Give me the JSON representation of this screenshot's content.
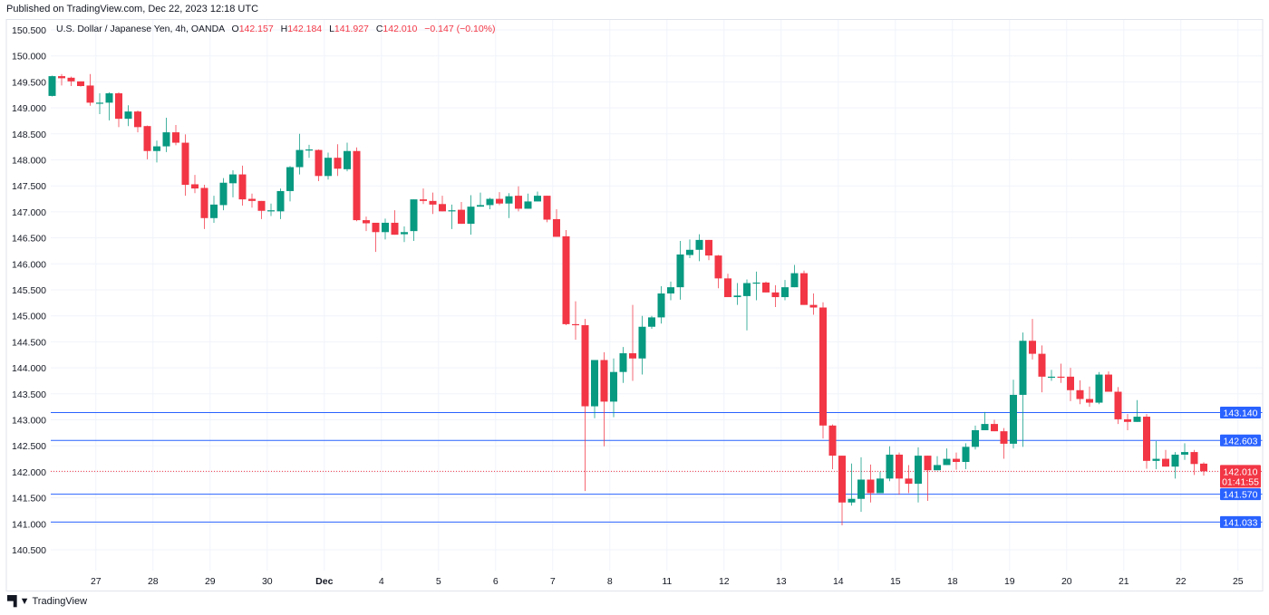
{
  "published": "Published on TradingView.com, Dec 22, 2023 12:18 UTC",
  "legend": {
    "symbol": "U.S. Dollar / Japanese Yen, 4h, OANDA",
    "o_label": "O",
    "o": "142.157",
    "h_label": "H",
    "h": "142.184",
    "l_label": "L",
    "l": "141.927",
    "c_label": "C",
    "c": "142.010",
    "change": "−0.147 (−0.10%)"
  },
  "footer": {
    "brand": "TradingView",
    "logo": "TV"
  },
  "colors": {
    "up": "#089981",
    "down": "#f23645",
    "hline": "#2962ff",
    "grid": "#f0f3fa"
  },
  "chart_data": {
    "type": "candlestick",
    "title": "U.S. Dollar / Japanese Yen, 4h, OANDA",
    "ylim": [
      140.3,
      150.7
    ],
    "y_ticks": [
      "140.500",
      "141.000",
      "141.500",
      "142.000",
      "142.500",
      "143.000",
      "143.500",
      "144.000",
      "144.500",
      "145.000",
      "145.500",
      "146.000",
      "146.500",
      "147.000",
      "147.500",
      "148.000",
      "148.500",
      "149.000",
      "149.500",
      "150.000",
      "150.500"
    ],
    "x_ticks": [
      "27",
      "28",
      "29",
      "30",
      "Dec",
      "4",
      "5",
      "6",
      "7",
      "8",
      "11",
      "12",
      "13",
      "14",
      "15",
      "18",
      "19",
      "20",
      "21",
      "22",
      "25"
    ],
    "x_tick_first_bar": 4.6,
    "bars_per_day": 6,
    "grid": true,
    "horizontal_lines": [
      "143.140",
      "142.603",
      "141.570",
      "141.033"
    ],
    "last_price": "142.010",
    "countdown": "01:41:55",
    "ohlc": [
      [
        149.23,
        149.62,
        149.22,
        149.61
      ],
      [
        149.61,
        149.65,
        149.43,
        149.57
      ],
      [
        149.58,
        149.6,
        149.42,
        149.51
      ],
      [
        149.51,
        149.51,
        149.41,
        149.42
      ],
      [
        149.43,
        149.65,
        149.04,
        149.1
      ],
      [
        149.09,
        149.28,
        148.88,
        149.1
      ],
      [
        149.1,
        149.3,
        148.76,
        149.28
      ],
      [
        149.28,
        149.3,
        148.63,
        148.79
      ],
      [
        148.79,
        149.05,
        148.65,
        148.93
      ],
      [
        148.93,
        148.95,
        148.53,
        148.63
      ],
      [
        148.65,
        148.66,
        148.01,
        148.17
      ],
      [
        148.17,
        148.37,
        147.95,
        148.26
      ],
      [
        148.26,
        148.81,
        148.15,
        148.53
      ],
      [
        148.53,
        148.67,
        148.28,
        148.33
      ],
      [
        148.33,
        148.49,
        147.31,
        147.52
      ],
      [
        147.53,
        147.71,
        147.36,
        147.45
      ],
      [
        147.46,
        147.52,
        146.67,
        146.88
      ],
      [
        146.88,
        147.31,
        146.79,
        147.14
      ],
      [
        147.13,
        147.65,
        147.03,
        147.56
      ],
      [
        147.55,
        147.8,
        147.28,
        147.72
      ],
      [
        147.72,
        147.89,
        147.12,
        147.24
      ],
      [
        147.25,
        147.35,
        147.08,
        147.21
      ],
      [
        147.21,
        147.21,
        146.86,
        147.02
      ],
      [
        147.02,
        147.16,
        146.92,
        147.03
      ],
      [
        147.01,
        147.45,
        146.86,
        147.4
      ],
      [
        147.4,
        147.88,
        147.2,
        147.86
      ],
      [
        147.86,
        148.5,
        147.72,
        148.19
      ],
      [
        148.19,
        148.29,
        148.04,
        148.2
      ],
      [
        148.19,
        148.2,
        147.59,
        147.69
      ],
      [
        147.69,
        148.14,
        147.62,
        148.04
      ],
      [
        148.04,
        148.3,
        147.69,
        147.83
      ],
      [
        147.82,
        148.33,
        147.78,
        148.17
      ],
      [
        148.17,
        148.24,
        146.82,
        146.84
      ],
      [
        146.84,
        146.91,
        146.63,
        146.78
      ],
      [
        146.79,
        146.79,
        146.23,
        146.61
      ],
      [
        146.61,
        146.87,
        146.47,
        146.79
      ],
      [
        146.79,
        147.03,
        146.56,
        146.56
      ],
      [
        146.57,
        146.72,
        146.42,
        146.61
      ],
      [
        146.63,
        147.24,
        146.44,
        147.24
      ],
      [
        147.24,
        147.45,
        147.15,
        147.21
      ],
      [
        147.21,
        147.37,
        146.96,
        147.14
      ],
      [
        147.15,
        147.31,
        147.01,
        147.01
      ],
      [
        147.01,
        147.14,
        146.67,
        147.03
      ],
      [
        147.04,
        147.19,
        146.77,
        146.77
      ],
      [
        146.77,
        147.32,
        146.56,
        147.1
      ],
      [
        147.1,
        147.37,
        147.1,
        147.13
      ],
      [
        147.13,
        147.27,
        147.05,
        147.25
      ],
      [
        147.25,
        147.38,
        147.13,
        147.16
      ],
      [
        147.16,
        147.36,
        146.88,
        147.3
      ],
      [
        147.31,
        147.49,
        147.01,
        147.06
      ],
      [
        147.06,
        147.35,
        147.06,
        147.2
      ],
      [
        147.2,
        147.39,
        147.2,
        147.31
      ],
      [
        147.31,
        147.31,
        146.8,
        146.85
      ],
      [
        146.86,
        147.05,
        146.52,
        146.52
      ],
      [
        146.53,
        146.65,
        144.82,
        144.84
      ],
      [
        144.84,
        145.28,
        144.54,
        144.82
      ],
      [
        144.82,
        144.94,
        141.63,
        143.26
      ],
      [
        143.26,
        144.15,
        143.03,
        144.15
      ],
      [
        144.15,
        144.3,
        142.49,
        143.35
      ],
      [
        143.35,
        144.18,
        143.05,
        143.92
      ],
      [
        143.92,
        144.4,
        143.71,
        144.28
      ],
      [
        144.28,
        145.21,
        143.75,
        144.18
      ],
      [
        144.18,
        145.0,
        143.87,
        144.79
      ],
      [
        144.79,
        145.0,
        144.75,
        144.97
      ],
      [
        144.97,
        145.57,
        144.85,
        145.43
      ],
      [
        145.43,
        145.66,
        145.3,
        145.55
      ],
      [
        145.55,
        146.44,
        145.31,
        146.18
      ],
      [
        146.17,
        146.47,
        146.11,
        146.27
      ],
      [
        146.27,
        146.57,
        146.05,
        146.46
      ],
      [
        146.46,
        146.46,
        146.07,
        146.16
      ],
      [
        146.16,
        146.17,
        145.53,
        145.72
      ],
      [
        145.72,
        145.81,
        145.36,
        145.36
      ],
      [
        145.36,
        145.63,
        145.21,
        145.39
      ],
      [
        145.38,
        145.7,
        144.72,
        145.63
      ],
      [
        145.63,
        145.85,
        145.3,
        145.64
      ],
      [
        145.64,
        145.66,
        145.45,
        145.45
      ],
      [
        145.45,
        145.59,
        145.17,
        145.36
      ],
      [
        145.36,
        145.69,
        145.3,
        145.55
      ],
      [
        145.55,
        145.98,
        145.55,
        145.82
      ],
      [
        145.82,
        145.87,
        145.21,
        145.21
      ],
      [
        145.21,
        145.43,
        145.02,
        145.16
      ],
      [
        145.16,
        145.26,
        142.64,
        142.89
      ],
      [
        142.89,
        142.91,
        142.05,
        142.31
      ],
      [
        142.31,
        142.31,
        140.97,
        141.41
      ],
      [
        141.41,
        142.16,
        141.35,
        141.48
      ],
      [
        141.48,
        142.28,
        141.23,
        141.85
      ],
      [
        141.85,
        142.14,
        141.41,
        141.59
      ],
      [
        141.59,
        142.0,
        141.59,
        141.87
      ],
      [
        141.87,
        142.49,
        141.82,
        142.33
      ],
      [
        142.33,
        142.37,
        141.56,
        141.87
      ],
      [
        141.87,
        142.13,
        141.59,
        141.77
      ],
      [
        141.77,
        142.47,
        141.41,
        142.31
      ],
      [
        142.31,
        142.31,
        141.44,
        142.03
      ],
      [
        142.03,
        142.3,
        142.03,
        142.13
      ],
      [
        142.13,
        142.45,
        142.13,
        142.25
      ],
      [
        142.25,
        142.37,
        142.04,
        142.19
      ],
      [
        142.19,
        142.55,
        142.05,
        142.48
      ],
      [
        142.48,
        142.89,
        142.43,
        142.8
      ],
      [
        142.8,
        143.15,
        142.8,
        142.92
      ],
      [
        142.92,
        143.0,
        142.78,
        142.78
      ],
      [
        142.78,
        142.84,
        142.25,
        142.54
      ],
      [
        142.54,
        143.77,
        142.45,
        143.48
      ],
      [
        143.48,
        144.68,
        142.48,
        144.52
      ],
      [
        144.52,
        144.94,
        144.16,
        144.27
      ],
      [
        144.27,
        144.43,
        143.53,
        143.83
      ],
      [
        143.82,
        143.96,
        143.75,
        143.83
      ],
      [
        143.83,
        144.08,
        143.71,
        143.82
      ],
      [
        143.83,
        144.0,
        143.36,
        143.57
      ],
      [
        143.57,
        143.76,
        143.3,
        143.4
      ],
      [
        143.4,
        143.64,
        143.25,
        143.33
      ],
      [
        143.33,
        143.92,
        143.3,
        143.87
      ],
      [
        143.87,
        143.93,
        143.54,
        143.54
      ],
      [
        143.54,
        143.63,
        142.92,
        143.01
      ],
      [
        143.01,
        143.11,
        142.8,
        142.96
      ],
      [
        142.96,
        143.38,
        142.96,
        143.06
      ],
      [
        143.06,
        143.11,
        142.06,
        142.21
      ],
      [
        142.21,
        142.59,
        142.05,
        142.25
      ],
      [
        142.25,
        142.42,
        142.1,
        142.1
      ],
      [
        142.1,
        142.38,
        141.87,
        142.33
      ],
      [
        142.33,
        142.55,
        142.23,
        142.38
      ],
      [
        142.38,
        142.42,
        141.94,
        142.15
      ],
      [
        142.157,
        142.184,
        141.927,
        142.01
      ]
    ]
  }
}
